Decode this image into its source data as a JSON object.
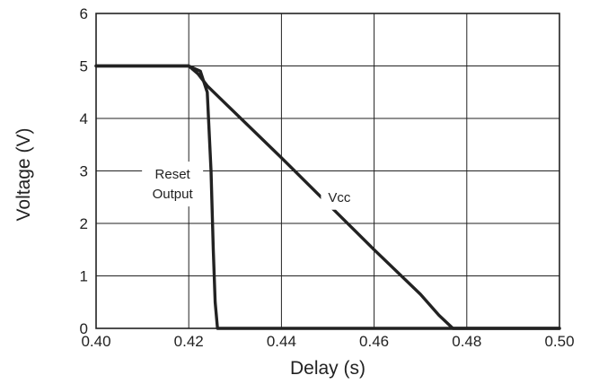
{
  "chart_data": {
    "type": "line",
    "title": "",
    "xlabel": "Delay (s)",
    "ylabel": "Voltage (V)",
    "xlim": [
      0.4,
      0.5
    ],
    "ylim": [
      0,
      6
    ],
    "x_ticks": [
      "0.40",
      "0.42",
      "0.44",
      "0.46",
      "0.48",
      "0.50"
    ],
    "y_ticks": [
      "0",
      "1",
      "2",
      "3",
      "4",
      "5",
      "6"
    ],
    "grid": true,
    "legend": "none",
    "line_color": "#222222",
    "grid_color": "#222222",
    "series": [
      {
        "name": "Reset Output",
        "x": [
          0.4,
          0.42,
          0.4225,
          0.424,
          0.4248,
          0.4253,
          0.4257,
          0.4262,
          0.5
        ],
        "y": [
          5.0,
          5.0,
          4.9,
          4.5,
          3.0,
          1.5,
          0.5,
          0.0,
          0.0
        ]
      },
      {
        "name": "Vcc",
        "x": [
          0.4,
          0.42,
          0.422,
          0.424,
          0.44,
          0.46,
          0.47,
          0.474,
          0.477,
          0.5
        ],
        "y": [
          5.0,
          5.0,
          4.85,
          4.62,
          3.25,
          1.5,
          0.65,
          0.25,
          0.0,
          0.0
        ]
      }
    ],
    "annotations": [
      {
        "lines": [
          "Reset",
          "Output"
        ],
        "x": 0.4165,
        "y": 2.75
      },
      {
        "lines": [
          "Vcc"
        ],
        "x": 0.4525,
        "y": 2.5
      }
    ]
  }
}
